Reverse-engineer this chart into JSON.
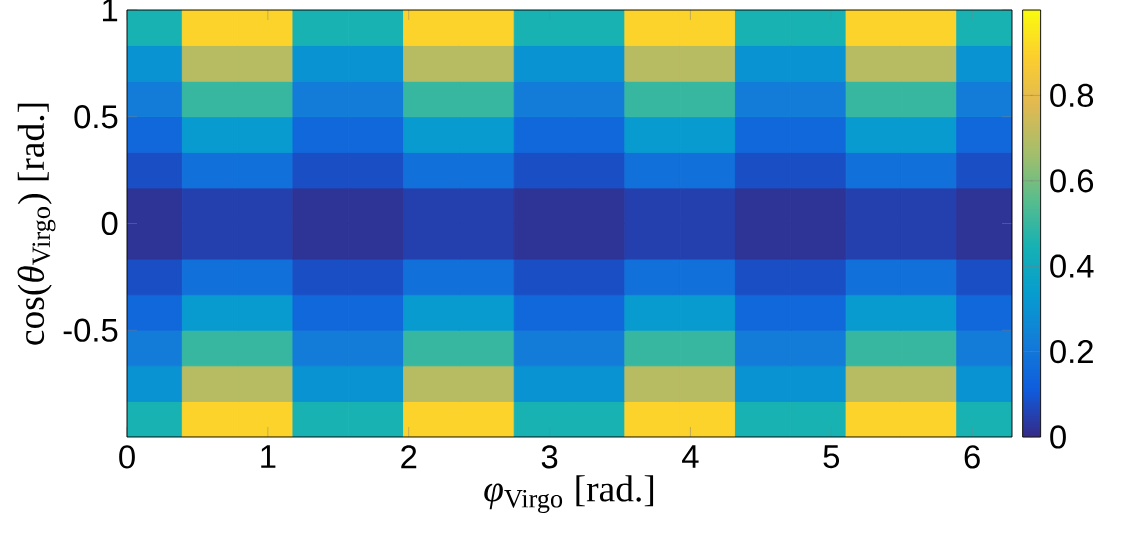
{
  "chart_data": {
    "type": "heatmap",
    "xlabel": "*φ*$_{Virgo}$ [rad.]",
    "ylabel": "cos(*θ*$_{Virgo}$) [rad.]",
    "x": [
      0.196,
      0.589,
      0.982,
      1.374,
      1.767,
      2.16,
      2.553,
      2.945,
      3.338,
      3.731,
      4.123,
      4.516,
      4.909,
      5.301,
      5.694,
      6.087
    ],
    "y": [
      0.917,
      0.75,
      0.583,
      0.417,
      0.25,
      0.083,
      -0.083,
      -0.25,
      -0.417,
      -0.583,
      -0.75,
      -0.917
    ],
    "xlim": [
      0,
      6.283
    ],
    "xticks": [
      0,
      1,
      2,
      3,
      4,
      5,
      6
    ],
    "ylim": [
      -1,
      1
    ],
    "yticks": [
      -0.5,
      0,
      0.5,
      1
    ],
    "clim": [
      0,
      1
    ],
    "cticks": [
      0,
      0.2,
      0.4,
      0.6,
      0.8
    ],
    "cells": [
      [
        0.45,
        0.9,
        0.9,
        0.45,
        0.45,
        0.9,
        0.9,
        0.45,
        0.45,
        0.9,
        0.9,
        0.45,
        0.45,
        0.9,
        0.9,
        0.45
      ],
      [
        0.3,
        0.7,
        0.7,
        0.3,
        0.3,
        0.7,
        0.7,
        0.3,
        0.3,
        0.7,
        0.7,
        0.3,
        0.3,
        0.7,
        0.7,
        0.3
      ],
      [
        0.22,
        0.5,
        0.5,
        0.22,
        0.22,
        0.5,
        0.5,
        0.22,
        0.22,
        0.5,
        0.5,
        0.22,
        0.22,
        0.5,
        0.5,
        0.22
      ],
      [
        0.15,
        0.33,
        0.33,
        0.15,
        0.15,
        0.33,
        0.33,
        0.15,
        0.15,
        0.33,
        0.33,
        0.15,
        0.15,
        0.33,
        0.33,
        0.15
      ],
      [
        0.08,
        0.18,
        0.18,
        0.08,
        0.08,
        0.18,
        0.18,
        0.08,
        0.08,
        0.18,
        0.18,
        0.08,
        0.08,
        0.18,
        0.18,
        0.08
      ],
      [
        0.02,
        0.05,
        0.05,
        0.02,
        0.02,
        0.05,
        0.05,
        0.02,
        0.02,
        0.05,
        0.05,
        0.02,
        0.02,
        0.05,
        0.05,
        0.02
      ],
      [
        0.02,
        0.05,
        0.05,
        0.02,
        0.02,
        0.05,
        0.05,
        0.02,
        0.02,
        0.05,
        0.05,
        0.02,
        0.02,
        0.05,
        0.05,
        0.02
      ],
      [
        0.08,
        0.18,
        0.18,
        0.08,
        0.08,
        0.18,
        0.18,
        0.08,
        0.08,
        0.18,
        0.18,
        0.08,
        0.08,
        0.18,
        0.18,
        0.08
      ],
      [
        0.15,
        0.33,
        0.33,
        0.15,
        0.15,
        0.33,
        0.33,
        0.15,
        0.15,
        0.33,
        0.33,
        0.15,
        0.15,
        0.33,
        0.33,
        0.15
      ],
      [
        0.22,
        0.5,
        0.5,
        0.22,
        0.22,
        0.5,
        0.5,
        0.22,
        0.22,
        0.5,
        0.5,
        0.22,
        0.22,
        0.5,
        0.5,
        0.22
      ],
      [
        0.3,
        0.7,
        0.7,
        0.3,
        0.3,
        0.7,
        0.7,
        0.3,
        0.3,
        0.7,
        0.7,
        0.3,
        0.3,
        0.7,
        0.7,
        0.3
      ],
      [
        0.45,
        0.9,
        0.9,
        0.45,
        0.45,
        0.9,
        0.9,
        0.45,
        0.45,
        0.9,
        0.9,
        0.45,
        0.45,
        0.9,
        0.9,
        0.45
      ]
    ]
  }
}
